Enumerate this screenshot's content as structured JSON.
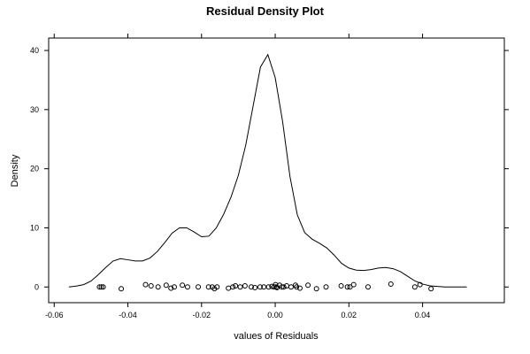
{
  "chart_data": {
    "type": "line",
    "title": "Residual Density Plot",
    "xlabel": "values of Residuals",
    "ylabel": "Density",
    "xlim": [
      -0.0615,
      0.0622
    ],
    "ylim": [
      -2.65,
      42.1
    ],
    "x_ticks": [
      -0.06,
      -0.04,
      -0.02,
      0.0,
      0.02,
      0.04
    ],
    "x_tick_labels": [
      "-0.06",
      "-0.04",
      "-0.02",
      "0.00",
      "0.02",
      "0.04"
    ],
    "y_ticks": [
      0,
      10,
      20,
      30,
      40
    ],
    "y_tick_labels": [
      "0",
      "10",
      "20",
      "30",
      "40"
    ],
    "grid": false,
    "series": [
      {
        "values": [
          [
            -0.056,
            0.0
          ],
          [
            -0.054,
            0.15
          ],
          [
            -0.052,
            0.4
          ],
          [
            -0.05,
            1.0
          ],
          [
            -0.048,
            2.1
          ],
          [
            -0.046,
            3.3
          ],
          [
            -0.044,
            4.4
          ],
          [
            -0.042,
            4.8
          ],
          [
            -0.04,
            4.6
          ],
          [
            -0.038,
            4.4
          ],
          [
            -0.036,
            4.4
          ],
          [
            -0.034,
            4.9
          ],
          [
            -0.032,
            6.0
          ],
          [
            -0.03,
            7.5
          ],
          [
            -0.028,
            9.1
          ],
          [
            -0.026,
            10.0
          ],
          [
            -0.024,
            10.0
          ],
          [
            -0.022,
            9.3
          ],
          [
            -0.02,
            8.5
          ],
          [
            -0.018,
            8.6
          ],
          [
            -0.016,
            10.0
          ],
          [
            -0.014,
            12.3
          ],
          [
            -0.012,
            15.2
          ],
          [
            -0.01,
            18.9
          ],
          [
            -0.008,
            24.0
          ],
          [
            -0.006,
            30.6
          ],
          [
            -0.004,
            37.2
          ],
          [
            -0.002,
            39.3
          ],
          [
            0.0,
            35.4
          ],
          [
            0.002,
            28.0
          ],
          [
            0.004,
            18.7
          ],
          [
            0.006,
            12.2
          ],
          [
            0.008,
            9.2
          ],
          [
            0.01,
            8.1
          ],
          [
            0.012,
            7.4
          ],
          [
            0.014,
            6.6
          ],
          [
            0.016,
            5.4
          ],
          [
            0.018,
            4.0
          ],
          [
            0.02,
            3.2
          ],
          [
            0.022,
            2.85
          ],
          [
            0.024,
            2.8
          ],
          [
            0.026,
            2.95
          ],
          [
            0.028,
            3.2
          ],
          [
            0.03,
            3.3
          ],
          [
            0.032,
            3.1
          ],
          [
            0.034,
            2.6
          ],
          [
            0.036,
            1.8
          ],
          [
            0.038,
            1.0
          ],
          [
            0.04,
            0.5
          ],
          [
            0.042,
            0.2
          ],
          [
            0.044,
            0.1
          ],
          [
            0.046,
            0.0
          ],
          [
            0.052,
            0.0
          ]
        ]
      }
    ],
    "rug_points": [
      [
        -0.0477,
        0.0
      ],
      [
        -0.0472,
        0.0
      ],
      [
        -0.0467,
        0.0
      ],
      [
        -0.0418,
        -0.3
      ],
      [
        -0.0352,
        0.4
      ],
      [
        -0.0337,
        0.2
      ],
      [
        -0.0318,
        0.0
      ],
      [
        -0.0296,
        0.3
      ],
      [
        -0.0283,
        -0.2
      ],
      [
        -0.0274,
        0.0
      ],
      [
        -0.0252,
        0.3
      ],
      [
        -0.0238,
        0.0
      ],
      [
        -0.0209,
        0.0
      ],
      [
        -0.0181,
        0.0
      ],
      [
        -0.0171,
        0.0
      ],
      [
        -0.0165,
        -0.3
      ],
      [
        -0.0158,
        0.0
      ],
      [
        -0.0127,
        -0.2
      ],
      [
        -0.0115,
        0.0
      ],
      [
        -0.0108,
        0.2
      ],
      [
        -0.0095,
        0.0
      ],
      [
        -0.0082,
        0.2
      ],
      [
        -0.0065,
        0.0
      ],
      [
        -0.0055,
        -0.1
      ],
      [
        -0.0041,
        0.0
      ],
      [
        -0.0031,
        0.0
      ],
      [
        -0.0018,
        0.0
      ],
      [
        -0.0009,
        0.1
      ],
      [
        -0.0003,
        0.0
      ],
      [
        0.0001,
        0.4
      ],
      [
        0.0002,
        0.0
      ],
      [
        0.0005,
        -0.1
      ],
      [
        0.0012,
        0.3
      ],
      [
        0.0018,
        0.0
      ],
      [
        0.0023,
        0.0
      ],
      [
        0.0031,
        0.2
      ],
      [
        0.0043,
        0.0
      ],
      [
        0.0055,
        0.3
      ],
      [
        0.0058,
        0.0
      ],
      [
        0.0067,
        -0.2
      ],
      [
        0.0089,
        0.3
      ],
      [
        0.0112,
        -0.3
      ],
      [
        0.0138,
        0.0
      ],
      [
        0.0179,
        0.2
      ],
      [
        0.0196,
        0.0
      ],
      [
        0.0203,
        0.0
      ],
      [
        0.0213,
        0.4
      ],
      [
        0.0252,
        0.0
      ],
      [
        0.0314,
        0.5
      ],
      [
        0.0379,
        0.0
      ],
      [
        0.0393,
        0.4
      ],
      [
        0.0423,
        -0.3
      ]
    ]
  }
}
